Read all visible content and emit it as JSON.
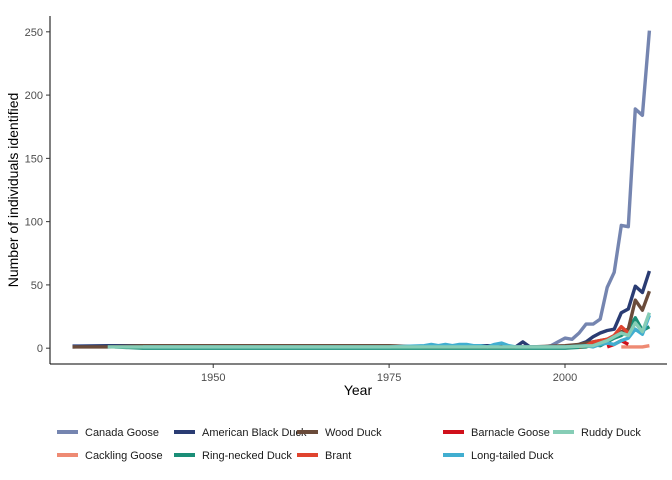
{
  "chart_data": {
    "type": "line",
    "xlabel": "Year",
    "ylabel": "Number of individuals identified",
    "xlim": [
      1926.8,
      2014.5
    ],
    "ylim": [
      -12.5,
      262.5
    ],
    "x_ticks": [
      1950,
      1975,
      2000
    ],
    "y_ticks": [
      0,
      50,
      100,
      150,
      200,
      250
    ],
    "x_tick_labels": [
      "1950",
      "1975",
      "2000"
    ],
    "y_tick_labels": [
      "0",
      "50",
      "100",
      "150",
      "200",
      "250"
    ],
    "grid": false,
    "legend_position": "bottom",
    "series": [
      {
        "name": "Canada Goose",
        "color": "#7585B0",
        "points": [
          [
            1930,
            2
          ],
          [
            1935,
            2
          ],
          [
            1940,
            1
          ],
          [
            1945,
            1
          ],
          [
            1950,
            1
          ],
          [
            1955,
            1
          ],
          [
            1960,
            1
          ],
          [
            1965,
            1
          ],
          [
            1970,
            1
          ],
          [
            1975,
            1
          ],
          [
            1980,
            1
          ],
          [
            1985,
            1
          ],
          [
            1990,
            1
          ],
          [
            1995,
            1
          ],
          [
            1997,
            1
          ],
          [
            1998,
            2
          ],
          [
            1999,
            5
          ],
          [
            2000,
            8
          ],
          [
            2001,
            7
          ],
          [
            2002,
            12
          ],
          [
            2003,
            19
          ],
          [
            2004,
            19
          ],
          [
            2005,
            23
          ],
          [
            2006,
            48
          ],
          [
            2007,
            60
          ],
          [
            2008,
            97
          ],
          [
            2009,
            96
          ],
          [
            2010,
            189
          ],
          [
            2011,
            184
          ],
          [
            2012,
            251
          ]
        ]
      },
      {
        "name": "Cackling Goose",
        "color": "#EE8A73",
        "points": [
          [
            2008,
            1
          ],
          [
            2009,
            1
          ],
          [
            2010,
            1
          ],
          [
            2011,
            1
          ],
          [
            2012,
            2
          ]
        ]
      },
      {
        "name": "American Black Duck",
        "color": "#2A3C73",
        "points": [
          [
            1930,
            1
          ],
          [
            1935,
            2
          ],
          [
            1940,
            2
          ],
          [
            1945,
            2
          ],
          [
            1950,
            2
          ],
          [
            1955,
            2
          ],
          [
            1960,
            2
          ],
          [
            1965,
            2
          ],
          [
            1970,
            2
          ],
          [
            1975,
            1
          ],
          [
            1980,
            1
          ],
          [
            1985,
            2
          ],
          [
            1990,
            2
          ],
          [
            1993,
            1
          ],
          [
            1994,
            5
          ],
          [
            1995,
            1
          ],
          [
            2000,
            1
          ],
          [
            2001,
            2
          ],
          [
            2002,
            3
          ],
          [
            2003,
            5
          ],
          [
            2004,
            9
          ],
          [
            2005,
            12
          ],
          [
            2006,
            14
          ],
          [
            2007,
            15
          ],
          [
            2008,
            28
          ],
          [
            2009,
            31
          ],
          [
            2010,
            49
          ],
          [
            2011,
            44
          ],
          [
            2012,
            61
          ]
        ]
      },
      {
        "name": "Ring-necked Duck",
        "color": "#1B8E77",
        "points": [
          [
            1936,
            1
          ],
          [
            1940,
            0
          ],
          [
            1945,
            0
          ],
          [
            1955,
            0
          ],
          [
            1965,
            0
          ],
          [
            1975,
            0
          ],
          [
            1985,
            0
          ],
          [
            2000,
            0
          ],
          [
            2003,
            1
          ],
          [
            2004,
            3
          ],
          [
            2005,
            2
          ],
          [
            2006,
            5
          ],
          [
            2007,
            8
          ],
          [
            2008,
            10
          ],
          [
            2009,
            14
          ],
          [
            2010,
            24
          ],
          [
            2011,
            14
          ],
          [
            2012,
            17
          ]
        ]
      },
      {
        "name": "Wood Duck",
        "color": "#6A4B3A",
        "points": [
          [
            1930,
            1
          ],
          [
            1935,
            1
          ],
          [
            1940,
            2
          ],
          [
            1945,
            2
          ],
          [
            1950,
            2
          ],
          [
            1955,
            2
          ],
          [
            1960,
            2
          ],
          [
            1965,
            2
          ],
          [
            1970,
            2
          ],
          [
            1975,
            2
          ],
          [
            1980,
            1
          ],
          [
            1985,
            1
          ],
          [
            1990,
            1
          ],
          [
            1995,
            1
          ],
          [
            2000,
            2
          ],
          [
            2002,
            3
          ],
          [
            2003,
            4
          ],
          [
            2004,
            5
          ],
          [
            2005,
            6
          ],
          [
            2006,
            7
          ],
          [
            2007,
            9
          ],
          [
            2008,
            13
          ],
          [
            2009,
            15
          ],
          [
            2010,
            38
          ],
          [
            2011,
            30
          ],
          [
            2012,
            45
          ]
        ]
      },
      {
        "name": "Brant",
        "color": "#E0432E",
        "points": [
          [
            2002,
            1
          ],
          [
            2003,
            2
          ],
          [
            2004,
            5
          ],
          [
            2005,
            6
          ],
          [
            2006,
            7
          ],
          [
            2007,
            10
          ],
          [
            2008,
            17
          ],
          [
            2009,
            12
          ],
          [
            2010,
            16
          ]
        ]
      },
      {
        "name": "Barnacle Goose",
        "color": "#D0101B",
        "points": [
          [
            2006,
            1
          ],
          [
            2007,
            3
          ],
          [
            2008,
            6
          ],
          [
            2009,
            3
          ]
        ]
      },
      {
        "name": "Long-tailed Duck",
        "color": "#41AED0",
        "points": [
          [
            1940,
            1
          ],
          [
            1950,
            1
          ],
          [
            1960,
            1
          ],
          [
            1970,
            1
          ],
          [
            1975,
            1
          ],
          [
            1980,
            2
          ],
          [
            1981,
            3
          ],
          [
            1982,
            2
          ],
          [
            1983,
            3
          ],
          [
            1984,
            2
          ],
          [
            1985,
            3
          ],
          [
            1986,
            3
          ],
          [
            1987,
            2
          ],
          [
            1988,
            2
          ],
          [
            1989,
            1
          ],
          [
            1990,
            3
          ],
          [
            1991,
            4
          ],
          [
            1992,
            2
          ],
          [
            1993,
            1
          ],
          [
            1995,
            1
          ],
          [
            2000,
            1
          ],
          [
            2003,
            2
          ],
          [
            2004,
            1
          ],
          [
            2005,
            3
          ],
          [
            2006,
            4
          ],
          [
            2007,
            3
          ],
          [
            2008,
            6
          ],
          [
            2009,
            8
          ],
          [
            2010,
            15
          ],
          [
            2011,
            11
          ],
          [
            2012,
            26
          ]
        ]
      },
      {
        "name": "Ruddy Duck",
        "color": "#86CDB6",
        "points": [
          [
            1935,
            1
          ],
          [
            1945,
            1
          ],
          [
            1955,
            1
          ],
          [
            1965,
            1
          ],
          [
            1975,
            1
          ],
          [
            1985,
            1
          ],
          [
            1995,
            1
          ],
          [
            2000,
            1
          ],
          [
            2004,
            2
          ],
          [
            2005,
            4
          ],
          [
            2006,
            6
          ],
          [
            2007,
            9
          ],
          [
            2008,
            12
          ],
          [
            2009,
            10
          ],
          [
            2010,
            20
          ],
          [
            2011,
            13
          ],
          [
            2012,
            28
          ]
        ]
      }
    ],
    "legend": [
      {
        "name": "Canada Goose",
        "color": "#7585B0"
      },
      {
        "name": "Cackling Goose",
        "color": "#EE8A73"
      },
      {
        "name": "American Black Duck",
        "color": "#2A3C73"
      },
      {
        "name": "Ring-necked Duck",
        "color": "#1B8E77"
      },
      {
        "name": "Wood Duck",
        "color": "#6A4B3A"
      },
      {
        "name": "Brant",
        "color": "#E0432E"
      },
      {
        "name": "Barnacle Goose",
        "color": "#D0101B"
      },
      {
        "name": "Long-tailed Duck",
        "color": "#41AED0"
      },
      {
        "name": "Ruddy Duck",
        "color": "#86CDB6"
      }
    ]
  }
}
